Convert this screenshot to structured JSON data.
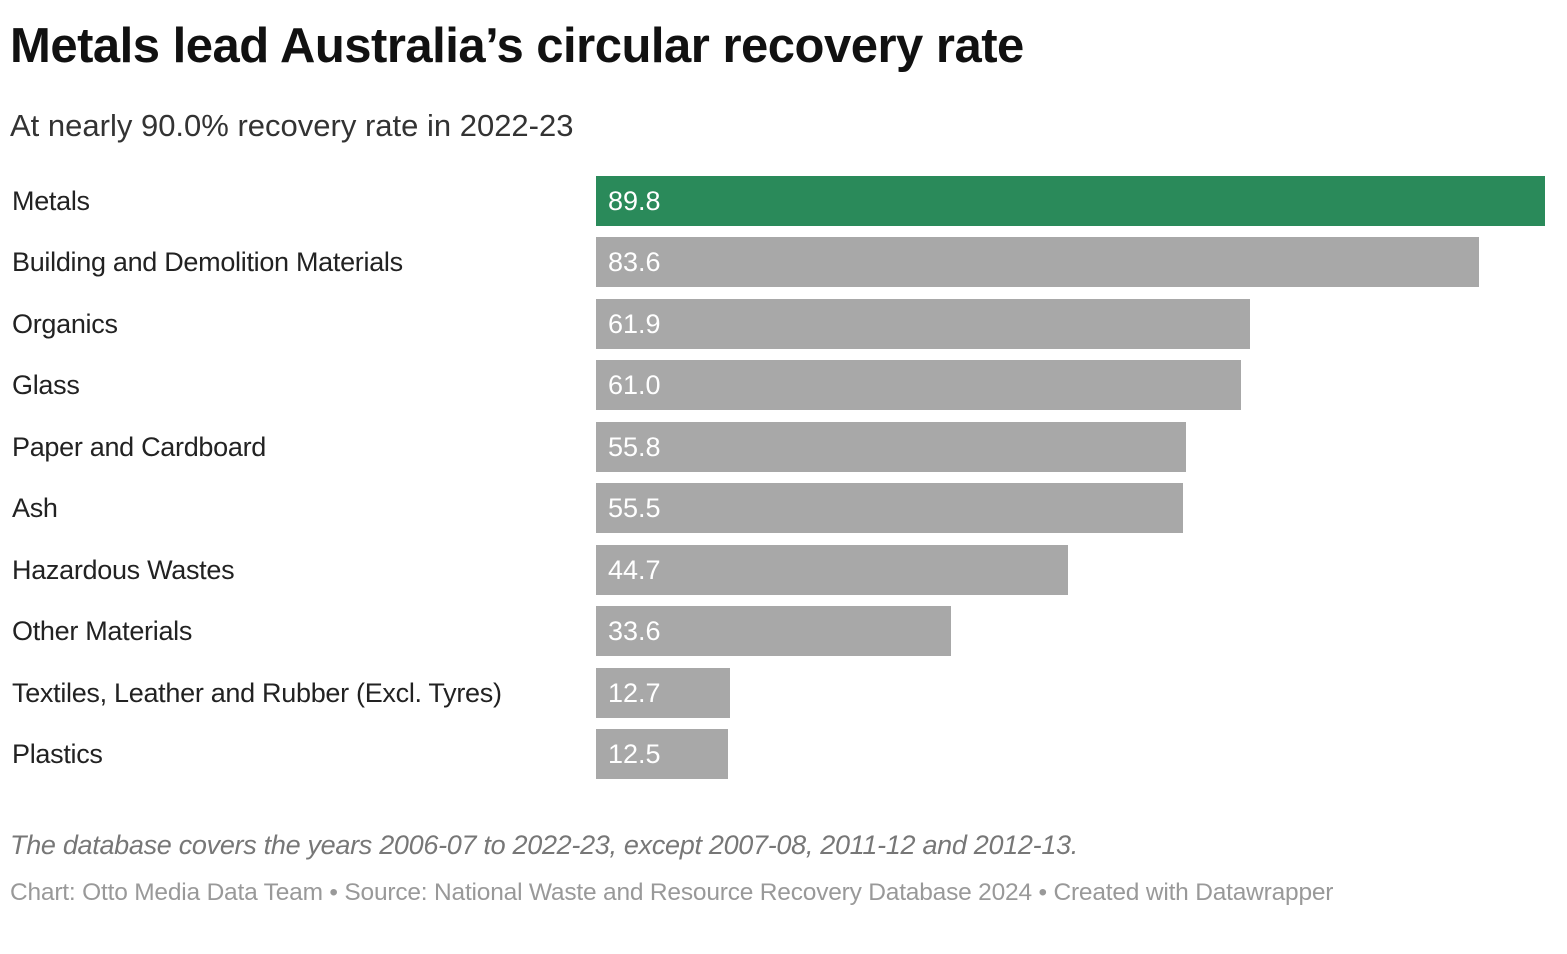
{
  "chart_data": {
    "type": "bar",
    "orientation": "horizontal",
    "title": "Metals lead Australia’s circular recovery rate",
    "subtitle": "At nearly 90.0% recovery rate in 2022-23",
    "categories": [
      "Metals",
      "Building and Demolition Materials",
      "Organics",
      "Glass",
      "Paper and Cardboard",
      "Ash",
      "Hazardous Wastes",
      "Other Materials",
      "Textiles, Leather and Rubber (Excl. Tyres)",
      "Plastics"
    ],
    "values": [
      89.8,
      83.6,
      61.9,
      61.0,
      55.8,
      55.5,
      44.7,
      33.6,
      12.7,
      12.5
    ],
    "value_labels": [
      "89.8",
      "83.6",
      "61.9",
      "61.0",
      "55.8",
      "55.5",
      "44.7",
      "33.6",
      "12.7",
      "12.5"
    ],
    "highlight_index": 0,
    "colors": {
      "highlight": "#2a8a5a",
      "default": "#a8a8a8"
    },
    "xlim": [
      0,
      89.8
    ],
    "grid": false,
    "note": "The database covers the years 2006-07 to 2022-23, except 2007-08, 2011-12 and 2012-13.",
    "source": "Chart: Otto Media Data Team • Source: National Waste and Resource Recovery Database 2024 • Created with Datawrapper"
  }
}
